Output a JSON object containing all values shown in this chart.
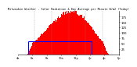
{
  "title": "Milwaukee Weather - Solar Radiation & Day Average per Minute W/m2 (Today)",
  "background_color": "#ffffff",
  "bar_color": "#ff0000",
  "avg_line_color": "#0000ff",
  "grid_color": "#888888",
  "text_color": "#000000",
  "ylim": [
    0,
    200
  ],
  "yticks": [
    25,
    50,
    75,
    100,
    125,
    150,
    175
  ],
  "ytick_labels": [
    "25",
    "50",
    "75",
    "100",
    "125",
    "150",
    "175"
  ],
  "num_points": 288,
  "peak_index": 155,
  "peak_value": 190,
  "avg_value": 62,
  "avg_start_idx": 30,
  "avg_end_idx": 210,
  "solar_start": 28,
  "solar_end": 258,
  "xtick_positions": [
    0,
    41,
    82,
    123,
    164,
    205,
    246,
    287
  ],
  "xtick_labels": [
    "4a",
    "6a",
    "8a",
    "10a",
    "12p",
    "2p",
    "4p",
    "6p"
  ]
}
